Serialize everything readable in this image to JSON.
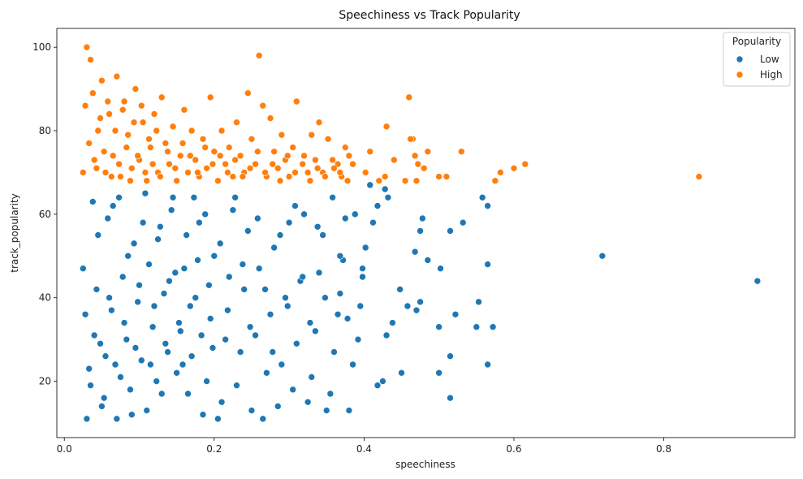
{
  "chart_data": {
    "type": "scatter",
    "title": "Speechiness vs Track Popularity",
    "xlabel": "speechiness",
    "ylabel": "track_popularity",
    "xlim": [
      -0.01,
      0.975
    ],
    "ylim": [
      6.5,
      104.5
    ],
    "xticks": [
      0.0,
      0.2,
      0.4,
      0.6,
      0.8
    ],
    "xtick_labels": [
      "0.0",
      "0.2",
      "0.4",
      "0.6",
      "0.8"
    ],
    "yticks": [
      20,
      40,
      60,
      80,
      100
    ],
    "ytick_labels": [
      "20",
      "40",
      "60",
      "80",
      "100"
    ],
    "grid": false,
    "legend": {
      "title": "Popularity",
      "placement": "top-right",
      "entries": [
        {
          "label": "Low",
          "color": "#1f77b4"
        },
        {
          "label": "High",
          "color": "#ff7f0e"
        }
      ]
    },
    "series": [
      {
        "legend_label": "Low",
        "color": "#1f77b4",
        "points": [
          [
            0.925,
            44
          ],
          [
            0.718,
            50
          ],
          [
            0.565,
            62
          ],
          [
            0.558,
            64
          ],
          [
            0.532,
            58
          ],
          [
            0.515,
            56
          ],
          [
            0.565,
            48
          ],
          [
            0.572,
            33
          ],
          [
            0.553,
            39
          ],
          [
            0.55,
            33
          ],
          [
            0.522,
            36
          ],
          [
            0.5,
            33
          ],
          [
            0.5,
            22
          ],
          [
            0.515,
            26
          ],
          [
            0.515,
            16
          ],
          [
            0.565,
            24
          ],
          [
            0.502,
            47
          ],
          [
            0.485,
            49
          ],
          [
            0.478,
            59
          ],
          [
            0.475,
            56
          ],
          [
            0.468,
            51
          ],
          [
            0.475,
            39
          ],
          [
            0.47,
            37
          ],
          [
            0.458,
            38
          ],
          [
            0.448,
            42
          ],
          [
            0.45,
            22
          ],
          [
            0.438,
            34
          ],
          [
            0.43,
            31
          ],
          [
            0.418,
            19
          ],
          [
            0.425,
            20
          ],
          [
            0.432,
            64
          ],
          [
            0.428,
            66
          ],
          [
            0.418,
            62
          ],
          [
            0.412,
            58
          ],
          [
            0.408,
            67
          ],
          [
            0.402,
            52
          ],
          [
            0.398,
            45
          ],
          [
            0.395,
            38
          ],
          [
            0.392,
            30
          ],
          [
            0.385,
            24
          ],
          [
            0.38,
            13
          ],
          [
            0.375,
            59
          ],
          [
            0.372,
            49
          ],
          [
            0.368,
            41
          ],
          [
            0.365,
            36
          ],
          [
            0.36,
            27
          ],
          [
            0.355,
            17
          ],
          [
            0.35,
            13
          ],
          [
            0.345,
            55
          ],
          [
            0.34,
            46
          ],
          [
            0.335,
            32
          ],
          [
            0.33,
            21
          ],
          [
            0.325,
            15
          ],
          [
            0.32,
            60
          ],
          [
            0.315,
            44
          ],
          [
            0.31,
            29
          ],
          [
            0.305,
            18
          ],
          [
            0.3,
            58
          ],
          [
            0.295,
            40
          ],
          [
            0.29,
            24
          ],
          [
            0.285,
            14
          ],
          [
            0.28,
            52
          ],
          [
            0.275,
            36
          ],
          [
            0.27,
            22
          ],
          [
            0.265,
            11
          ],
          [
            0.26,
            47
          ],
          [
            0.255,
            31
          ],
          [
            0.25,
            13
          ],
          [
            0.245,
            56
          ],
          [
            0.24,
            42
          ],
          [
            0.235,
            27
          ],
          [
            0.23,
            19
          ],
          [
            0.225,
            61
          ],
          [
            0.22,
            45
          ],
          [
            0.215,
            30
          ],
          [
            0.21,
            15
          ],
          [
            0.205,
            11
          ],
          [
            0.2,
            50
          ],
          [
            0.195,
            35
          ],
          [
            0.19,
            20
          ],
          [
            0.185,
            12
          ],
          [
            0.18,
            58
          ],
          [
            0.175,
            40
          ],
          [
            0.17,
            26
          ],
          [
            0.165,
            17
          ],
          [
            0.16,
            47
          ],
          [
            0.155,
            32
          ],
          [
            0.15,
            22
          ],
          [
            0.145,
            64
          ],
          [
            0.14,
            44
          ],
          [
            0.135,
            29
          ],
          [
            0.13,
            17
          ],
          [
            0.125,
            54
          ],
          [
            0.12,
            38
          ],
          [
            0.115,
            24
          ],
          [
            0.11,
            13
          ],
          [
            0.105,
            58
          ],
          [
            0.1,
            43
          ],
          [
            0.095,
            28
          ],
          [
            0.09,
            12
          ],
          [
            0.085,
            50
          ],
          [
            0.08,
            34
          ],
          [
            0.075,
            21
          ],
          [
            0.07,
            11
          ],
          [
            0.065,
            62
          ],
          [
            0.06,
            40
          ],
          [
            0.055,
            26
          ],
          [
            0.05,
            14
          ],
          [
            0.045,
            55
          ],
          [
            0.04,
            31
          ],
          [
            0.035,
            19
          ],
          [
            0.03,
            11
          ],
          [
            0.025,
            47
          ],
          [
            0.028,
            36
          ],
          [
            0.033,
            23
          ],
          [
            0.038,
            63
          ],
          [
            0.043,
            42
          ],
          [
            0.048,
            29
          ],
          [
            0.053,
            16
          ],
          [
            0.058,
            59
          ],
          [
            0.063,
            37
          ],
          [
            0.068,
            24
          ],
          [
            0.073,
            64
          ],
          [
            0.078,
            45
          ],
          [
            0.083,
            30
          ],
          [
            0.088,
            18
          ],
          [
            0.093,
            53
          ],
          [
            0.098,
            39
          ],
          [
            0.103,
            25
          ],
          [
            0.108,
            65
          ],
          [
            0.113,
            48
          ],
          [
            0.118,
            33
          ],
          [
            0.123,
            20
          ],
          [
            0.128,
            57
          ],
          [
            0.133,
            41
          ],
          [
            0.138,
            27
          ],
          [
            0.143,
            61
          ],
          [
            0.148,
            46
          ],
          [
            0.153,
            34
          ],
          [
            0.158,
            24
          ],
          [
            0.163,
            55
          ],
          [
            0.168,
            38
          ],
          [
            0.173,
            64
          ],
          [
            0.178,
            49
          ],
          [
            0.183,
            31
          ],
          [
            0.188,
            60
          ],
          [
            0.193,
            43
          ],
          [
            0.198,
            28
          ],
          [
            0.208,
            53
          ],
          [
            0.218,
            37
          ],
          [
            0.228,
            64
          ],
          [
            0.238,
            48
          ],
          [
            0.248,
            33
          ],
          [
            0.258,
            59
          ],
          [
            0.268,
            42
          ],
          [
            0.278,
            27
          ],
          [
            0.288,
            55
          ],
          [
            0.298,
            38
          ],
          [
            0.308,
            62
          ],
          [
            0.318,
            45
          ],
          [
            0.328,
            34
          ],
          [
            0.338,
            57
          ],
          [
            0.348,
            40
          ],
          [
            0.358,
            64
          ],
          [
            0.368,
            50
          ],
          [
            0.378,
            35
          ],
          [
            0.388,
            60
          ],
          [
            0.398,
            47
          ]
        ]
      },
      {
        "legend_label": "High",
        "color": "#ff7f0e",
        "points": [
          [
            0.847,
            69
          ],
          [
            0.615,
            72
          ],
          [
            0.6,
            71
          ],
          [
            0.582,
            70
          ],
          [
            0.575,
            68
          ],
          [
            0.53,
            75
          ],
          [
            0.51,
            69
          ],
          [
            0.5,
            69
          ],
          [
            0.485,
            75
          ],
          [
            0.48,
            71
          ],
          [
            0.472,
            72
          ],
          [
            0.468,
            74
          ],
          [
            0.465,
            78
          ],
          [
            0.462,
            78
          ],
          [
            0.46,
            88
          ],
          [
            0.47,
            68
          ],
          [
            0.455,
            68
          ],
          [
            0.44,
            73
          ],
          [
            0.43,
            81
          ],
          [
            0.428,
            69
          ],
          [
            0.42,
            68
          ],
          [
            0.408,
            75
          ],
          [
            0.402,
            70
          ],
          [
            0.385,
            72
          ],
          [
            0.38,
            74
          ],
          [
            0.375,
            76
          ],
          [
            0.37,
            69
          ],
          [
            0.365,
            72
          ],
          [
            0.36,
            71
          ],
          [
            0.352,
            78
          ],
          [
            0.345,
            70
          ],
          [
            0.34,
            82
          ],
          [
            0.335,
            73
          ],
          [
            0.33,
            79
          ],
          [
            0.325,
            70
          ],
          [
            0.32,
            74
          ],
          [
            0.31,
            87
          ],
          [
            0.305,
            76
          ],
          [
            0.3,
            69
          ],
          [
            0.295,
            73
          ],
          [
            0.29,
            79
          ],
          [
            0.285,
            71
          ],
          [
            0.28,
            75
          ],
          [
            0.275,
            83
          ],
          [
            0.27,
            69
          ],
          [
            0.265,
            86
          ],
          [
            0.26,
            98
          ],
          [
            0.255,
            72
          ],
          [
            0.25,
            78
          ],
          [
            0.245,
            89
          ],
          [
            0.24,
            70
          ],
          [
            0.235,
            74
          ],
          [
            0.23,
            82
          ],
          [
            0.225,
            69
          ],
          [
            0.22,
            76
          ],
          [
            0.215,
            72
          ],
          [
            0.21,
            80
          ],
          [
            0.205,
            68
          ],
          [
            0.2,
            75
          ],
          [
            0.195,
            88
          ],
          [
            0.19,
            71
          ],
          [
            0.185,
            78
          ],
          [
            0.18,
            69
          ],
          [
            0.175,
            73
          ],
          [
            0.17,
            80
          ],
          [
            0.165,
            70
          ],
          [
            0.16,
            85
          ],
          [
            0.155,
            74
          ],
          [
            0.15,
            68
          ],
          [
            0.145,
            81
          ],
          [
            0.14,
            72
          ],
          [
            0.135,
            77
          ],
          [
            0.13,
            88
          ],
          [
            0.125,
            70
          ],
          [
            0.12,
            84
          ],
          [
            0.115,
            76
          ],
          [
            0.11,
            68
          ],
          [
            0.105,
            82
          ],
          [
            0.1,
            73
          ],
          [
            0.095,
            90
          ],
          [
            0.09,
            71
          ],
          [
            0.085,
            79
          ],
          [
            0.08,
            87
          ],
          [
            0.075,
            69
          ],
          [
            0.07,
            93
          ],
          [
            0.065,
            74
          ],
          [
            0.06,
            84
          ],
          [
            0.055,
            70
          ],
          [
            0.05,
            92
          ],
          [
            0.045,
            80
          ],
          [
            0.04,
            73
          ],
          [
            0.035,
            97
          ],
          [
            0.03,
            100
          ],
          [
            0.028,
            86
          ],
          [
            0.025,
            70
          ],
          [
            0.033,
            77
          ],
          [
            0.038,
            89
          ],
          [
            0.043,
            71
          ],
          [
            0.048,
            83
          ],
          [
            0.053,
            75
          ],
          [
            0.058,
            87
          ],
          [
            0.063,
            69
          ],
          [
            0.068,
            80
          ],
          [
            0.073,
            72
          ],
          [
            0.078,
            85
          ],
          [
            0.083,
            76
          ],
          [
            0.088,
            68
          ],
          [
            0.093,
            82
          ],
          [
            0.098,
            74
          ],
          [
            0.103,
            86
          ],
          [
            0.108,
            70
          ],
          [
            0.113,
            78
          ],
          [
            0.118,
            72
          ],
          [
            0.123,
            80
          ],
          [
            0.128,
            69
          ],
          [
            0.138,
            75
          ],
          [
            0.148,
            71
          ],
          [
            0.158,
            77
          ],
          [
            0.168,
            74
          ],
          [
            0.178,
            70
          ],
          [
            0.188,
            76
          ],
          [
            0.198,
            72
          ],
          [
            0.208,
            74
          ],
          [
            0.218,
            70
          ],
          [
            0.228,
            73
          ],
          [
            0.238,
            69
          ],
          [
            0.248,
            71
          ],
          [
            0.258,
            75
          ],
          [
            0.268,
            70
          ],
          [
            0.278,
            72
          ],
          [
            0.288,
            68
          ],
          [
            0.298,
            74
          ],
          [
            0.308,
            70
          ],
          [
            0.318,
            72
          ],
          [
            0.328,
            68
          ],
          [
            0.338,
            71
          ],
          [
            0.348,
            69
          ],
          [
            0.358,
            73
          ],
          [
            0.368,
            70
          ],
          [
            0.378,
            68
          ]
        ]
      }
    ]
  }
}
